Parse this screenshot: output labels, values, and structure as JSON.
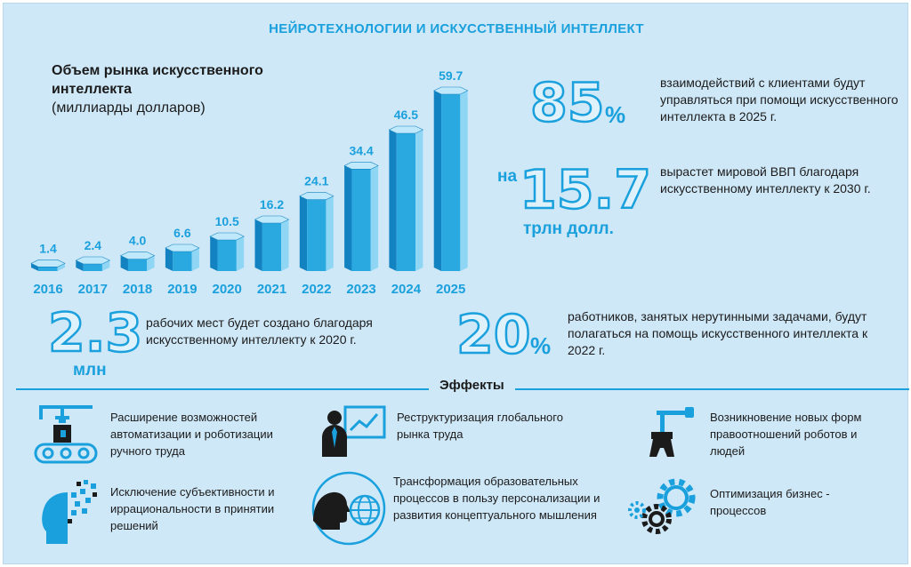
{
  "header": {
    "title": "НЕЙРОТЕХНОЛОГИИ И ИСКУССТВЕННЫЙ ИНТЕЛЛЕКТ"
  },
  "chart_data": {
    "type": "bar",
    "title": "Объем рынка искусственного интеллекта",
    "subtitle": "(миллиарды долларов)",
    "categories": [
      "2016",
      "2017",
      "2018",
      "2019",
      "2020",
      "2021",
      "2022",
      "2023",
      "2024",
      "2025"
    ],
    "values": [
      1.4,
      2.4,
      4.0,
      6.6,
      10.5,
      16.2,
      24.1,
      34.4,
      46.5,
      59.7
    ],
    "value_labels": [
      "1.4",
      "2.4",
      "4.0",
      "6.6",
      "10.5",
      "16.2",
      "24.1",
      "34.4",
      "46.5",
      "59.7"
    ],
    "xlabel": "",
    "ylabel": "",
    "ylim": [
      0,
      60
    ],
    "grid": false,
    "colors": {
      "bar": "#2aa9e0",
      "bar_dark": "#1282c0",
      "bar_light": "#8fd6f5",
      "label": "#1aa0dc"
    }
  },
  "stats": {
    "s85": {
      "value": "85",
      "unit": "%",
      "text": "взаимодействий с клиентами будут управляться при помощи искусственного интеллекта в 2025 г."
    },
    "s157": {
      "prefix": "на",
      "value": "15.7",
      "unit": "трлн долл.",
      "text": "вырастет мировой ВВП благодаря искусственному интеллекту к 2030 г."
    },
    "s23": {
      "value": "2.3",
      "unit": "млн",
      "text": "рабочих мест будет создано благодаря искусственному интеллекту к 2020 г."
    },
    "s20": {
      "value": "20",
      "unit": "%",
      "text": "работников, занятых нерутинными задачами, будут полагаться на помощь искусственного интеллекта к 2022 г."
    }
  },
  "effects": {
    "title": "Эффекты",
    "items": [
      {
        "icon": "robot-conveyor-icon",
        "text": "Расширение возможностей автоматизации и роботизации ручного труда"
      },
      {
        "icon": "presentation-chart-icon",
        "text": "Реструктуризация глобального рынка труда"
      },
      {
        "icon": "robot-arm-icon",
        "text": "Возникновение новых форм правоотношений роботов и людей"
      },
      {
        "icon": "digital-head-icon",
        "text": "Исключение субъективности и иррациональности в принятии решений"
      },
      {
        "icon": "head-globe-icon",
        "text": "Трансформация образовательных процессов в пользу персонализации и развития концептуального мышления"
      },
      {
        "icon": "gears-icon",
        "text": "Оптимизация бизнес - процессов"
      }
    ]
  },
  "colors": {
    "accent": "#1aa0dc",
    "background": "#cfe8f8",
    "text": "#1b1b1b",
    "dark": "#1b1b1b"
  }
}
